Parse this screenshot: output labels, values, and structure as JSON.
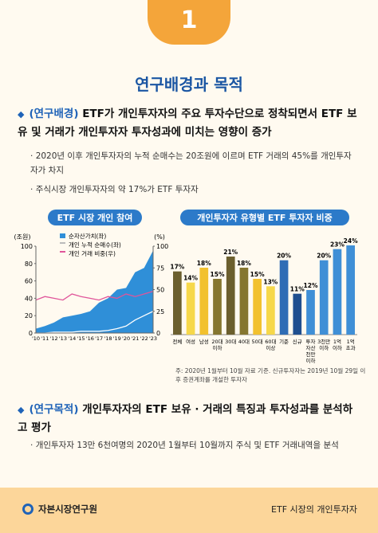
{
  "header": {
    "number": "1",
    "title": "연구배경과 목적"
  },
  "background": {
    "label": "(연구배경)",
    "heading": "ETF가 개인투자자의 주요 투자수단으로 정착되면서 ETF 보유 및 거래가 개인투자자 투자성과에 미치는 영향이 증가",
    "bullets": [
      "2020년 이후 개인투자자의 누적 순매수는 20조원에 이르며 ETF 거래의 45%를 개인투자자가 차지",
      "주식시장 개인투자자의 약 17%가 ETF 투자자"
    ]
  },
  "chart_data": [
    {
      "type": "line",
      "title": "ETF 시장 개인 참여",
      "y_label": "(조원)",
      "y2_label": "(%)",
      "categories": [
        "'10",
        "'11",
        "'12",
        "'13",
        "'14",
        "'15",
        "'16",
        "'17",
        "'18",
        "'19",
        "'20",
        "'21",
        "'22",
        "'23"
      ],
      "series": [
        {
          "name": "순자산가치(좌)",
          "color": "#2f8fd8",
          "kind": "area",
          "values": [
            5,
            8,
            12,
            18,
            20,
            22,
            25,
            35,
            40,
            50,
            52,
            70,
            75,
            95
          ]
        },
        {
          "name": "개인 누적 순매수(좌)",
          "color": "#ffffff",
          "kind": "line",
          "values": [
            0,
            0,
            1,
            1,
            1,
            2,
            2,
            2,
            3,
            5,
            8,
            15,
            20,
            25
          ]
        },
        {
          "name": "개인 거래 비중(우)",
          "color": "#e0559a",
          "kind": "line",
          "axis": "y2",
          "values": [
            38,
            42,
            40,
            38,
            45,
            42,
            40,
            38,
            42,
            40,
            45,
            42,
            45,
            48
          ]
        }
      ],
      "ylim": [
        0,
        100
      ],
      "yticks": [
        0,
        20,
        40,
        60,
        80,
        100
      ],
      "y2lim": [
        0,
        100
      ],
      "y2ticks": [
        0,
        25,
        50,
        75,
        100
      ]
    },
    {
      "type": "bar",
      "title": "개인투자자 유형별 ETF 투자자 비중",
      "categories": [
        "전체",
        "여성",
        "남성",
        "20대\n이하",
        "30대",
        "40대",
        "50대",
        "60대\n이상",
        "기준",
        "신규",
        "투자\n자산\n천만\n이하",
        "3천만\n이하",
        "1억\n이하",
        "1억\n초과"
      ],
      "values": [
        17,
        14,
        18,
        15,
        21,
        18,
        15,
        13,
        20,
        11,
        12,
        20,
        23,
        24
      ],
      "value_labels": [
        "17%",
        "14%",
        "18%",
        "15%",
        "21%",
        "18%",
        "15%",
        "13%",
        "20%",
        "11%",
        "12%",
        "20%",
        "23%",
        "24%"
      ],
      "colors": [
        "#6b5f2e",
        "#f6d84a",
        "#f2c12e",
        "#85762f",
        "#6b5f2e",
        "#85762f",
        "#f2c12e",
        "#f6d84a",
        "#2f6db5",
        "#1f4f8f",
        "#3f8fd6",
        "#3f8fd6",
        "#3f8fd6",
        "#3f8fd6"
      ]
    }
  ],
  "note": "주: 2020년 1월부터 10월 자료 기준. 신규투자자는 2019년 10월 29일 이후 증권계좌를 개설한 투자자",
  "purpose": {
    "label": "(연구목적)",
    "heading": "개인투자자의 ETF 보유 · 거래의 특징과 투자성과를 분석하고 평가",
    "bullets": [
      "개인투자자 13만 6천여명의 2020년 1월부터 10월까지 주식 및 ETF 거래내역을 분석"
    ]
  },
  "footer": {
    "org": "자본시장연구원",
    "topic": "ETF 시장의 개인투자자"
  }
}
